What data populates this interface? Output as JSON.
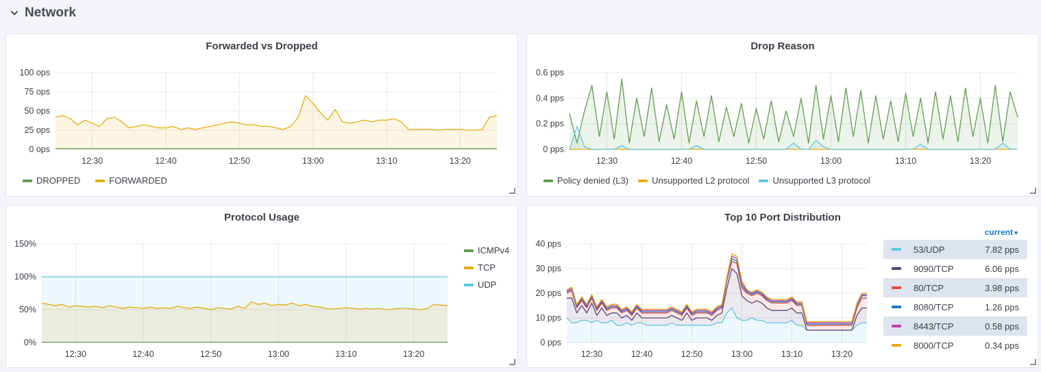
{
  "row": {
    "title": "Network"
  },
  "colors": {
    "green": "#629e51",
    "yellow": "#e5ac0e",
    "cyan": "#64c6e0",
    "purple": "#584477",
    "red": "#e24d42",
    "blue": "#1f78c1",
    "magenta": "#ba43a9",
    "grid": "#e6e8ec",
    "axis_text": "#3a3f47"
  },
  "panels": {
    "forwarded": {
      "title": "Forwarded vs Dropped",
      "legend": [
        {
          "label": "DROPPED",
          "color": "#629e51"
        },
        {
          "label": "FORWARDED",
          "color": "#e5ac0e"
        }
      ]
    },
    "drop_reason": {
      "title": "Drop Reason",
      "legend": [
        {
          "label": "Policy denied (L3)",
          "color": "#629e51"
        },
        {
          "label": "Unsupported L2 protocol",
          "color": "#e5ac0e"
        },
        {
          "label": "Unsupported L3 protocol",
          "color": "#64c6e0"
        }
      ]
    },
    "protocol": {
      "title": "Protocol Usage",
      "legend": [
        {
          "label": "ICMPv4",
          "color": "#629e51"
        },
        {
          "label": "TCP",
          "color": "#e5ac0e"
        },
        {
          "label": "UDP",
          "color": "#64c6e0"
        }
      ]
    },
    "ports": {
      "title": "Top 10 Port Distribution",
      "legend_header": "current",
      "legend": [
        {
          "label": "53/UDP",
          "value": "7.82 pps",
          "color": "#64c6e0"
        },
        {
          "label": "9090/TCP",
          "value": "6.06 pps",
          "color": "#584477"
        },
        {
          "label": "80/TCP",
          "value": "3.98 pps",
          "color": "#e24d42"
        },
        {
          "label": "8080/TCP",
          "value": "1.26 pps",
          "color": "#1f78c1"
        },
        {
          "label": "8443/TCP",
          "value": "0.58 pps",
          "color": "#ba43a9"
        },
        {
          "label": "8000/TCP",
          "value": "0.34 pps",
          "color": "#e5ac0e"
        }
      ]
    }
  },
  "chart_data": [
    {
      "type": "area",
      "title": "Forwarded vs Dropped",
      "x_ticks": [
        "12:30",
        "12:40",
        "12:50",
        "13:00",
        "13:10",
        "13:20"
      ],
      "y_ticks": [
        "0 ops",
        "25 ops",
        "50 ops",
        "75 ops",
        "100 ops"
      ],
      "x_range": [
        "12:25",
        "13:25"
      ],
      "ylim": [
        0,
        100
      ],
      "series": [
        {
          "name": "DROPPED",
          "values": [
            1,
            1,
            1,
            1,
            1,
            1,
            1,
            1,
            1,
            1,
            1,
            1,
            1,
            1,
            1,
            1,
            1,
            1,
            1,
            1,
            1,
            1,
            1,
            1,
            1,
            1,
            1,
            1,
            1,
            1,
            1,
            1,
            1,
            1,
            1,
            1,
            1,
            1,
            1,
            1,
            1,
            1,
            1,
            1,
            1,
            1,
            1,
            1,
            1,
            1,
            1,
            1,
            1,
            1,
            1,
            1,
            1,
            1,
            1,
            1,
            1
          ]
        },
        {
          "name": "FORWARDED",
          "values": [
            42,
            44,
            40,
            32,
            38,
            34,
            30,
            40,
            42,
            36,
            28,
            30,
            32,
            30,
            28,
            28,
            30,
            26,
            28,
            26,
            28,
            30,
            32,
            34,
            36,
            34,
            32,
            32,
            30,
            30,
            28,
            26,
            30,
            42,
            70,
            60,
            48,
            38,
            52,
            36,
            34,
            36,
            38,
            36,
            38,
            38,
            40,
            36,
            26,
            26,
            26,
            26,
            25,
            26,
            26,
            26,
            25,
            25,
            26,
            42,
            44
          ]
        }
      ]
    },
    {
      "type": "line",
      "title": "Drop Reason",
      "x_ticks": [
        "12:30",
        "12:40",
        "12:50",
        "13:00",
        "13:10",
        "13:20"
      ],
      "y_ticks": [
        "0 pps",
        "0.2 pps",
        "0.4 pps",
        "0.6 pps"
      ],
      "x_range": [
        "12:25",
        "13:25"
      ],
      "ylim": [
        0,
        0.6
      ],
      "series": [
        {
          "name": "Policy denied (L3)",
          "values": [
            0.28,
            0.05,
            0.3,
            0.5,
            0.1,
            0.45,
            0.08,
            0.55,
            0.05,
            0.4,
            0.1,
            0.48,
            0.06,
            0.35,
            0.08,
            0.45,
            0.05,
            0.38,
            0.1,
            0.42,
            0.06,
            0.33,
            0.1,
            0.36,
            0.05,
            0.32,
            0.08,
            0.38,
            0.06,
            0.3,
            0.1,
            0.4,
            0.05,
            0.5,
            0.08,
            0.42,
            0.06,
            0.48,
            0.1,
            0.46,
            0.05,
            0.42,
            0.08,
            0.38,
            0.06,
            0.44,
            0.1,
            0.4,
            0.05,
            0.45,
            0.08,
            0.42,
            0.06,
            0.48,
            0.1,
            0.4,
            0.05,
            0.5,
            0.06,
            0.45,
            0.25
          ]
        },
        {
          "name": "Unsupported L2 protocol",
          "values": [
            0,
            0,
            0,
            0,
            0,
            0,
            0,
            0,
            0,
            0,
            0,
            0,
            0,
            0,
            0,
            0,
            0,
            0,
            0,
            0,
            0,
            0,
            0,
            0,
            0,
            0,
            0,
            0,
            0,
            0,
            0,
            0,
            0,
            0,
            0,
            0,
            0,
            0,
            0,
            0,
            0,
            0,
            0,
            0,
            0,
            0,
            0,
            0,
            0,
            0,
            0,
            0,
            0,
            0,
            0,
            0,
            0,
            0,
            0,
            0,
            0
          ]
        },
        {
          "name": "Unsupported L3 protocol",
          "values": [
            0,
            0.18,
            0.02,
            0,
            0,
            0,
            0,
            0.03,
            0,
            0,
            0,
            0,
            0,
            0,
            0,
            0,
            0,
            0.03,
            0,
            0,
            0,
            0,
            0,
            0,
            0,
            0,
            0,
            0,
            0,
            0,
            0.05,
            0,
            0,
            0.07,
            0.02,
            0,
            0,
            0,
            0,
            0,
            0,
            0,
            0,
            0,
            0,
            0,
            0,
            0.04,
            0,
            0,
            0,
            0,
            0,
            0,
            0,
            0,
            0,
            0,
            0.05,
            0,
            0
          ]
        }
      ]
    },
    {
      "type": "area",
      "title": "Protocol Usage",
      "x_ticks": [
        "12:30",
        "12:40",
        "12:50",
        "13:00",
        "13:10",
        "13:20"
      ],
      "y_ticks": [
        "0%",
        "50%",
        "100%",
        "150%"
      ],
      "x_range": [
        "12:25",
        "13:25"
      ],
      "ylim": [
        0,
        150
      ],
      "series": [
        {
          "name": "ICMPv4",
          "values": [
            0.5,
            0.5,
            0.5,
            0.5,
            0.5,
            0.5,
            0.5,
            0.5,
            0.5,
            0.5,
            0.5,
            0.5,
            0.5,
            0.5,
            0.5,
            0.5,
            0.5,
            0.5,
            0.5,
            0.5,
            0.5,
            0.5,
            0.5,
            0.5,
            0.5,
            0.5,
            0.5,
            0.5,
            0.5,
            0.5,
            0.5,
            0.5,
            0.5,
            0.5,
            0.5,
            0.5,
            0.5,
            0.5,
            0.5,
            0.5,
            0.5,
            0.5,
            0.5,
            0.5,
            0.5,
            0.5,
            0.5,
            0.5,
            0.5,
            0.5,
            0.5,
            0.5,
            0.5,
            0.5,
            0.5,
            0.5,
            0.5,
            0.5,
            0.5,
            0.5,
            0.5
          ]
        },
        {
          "name": "TCP",
          "values": [
            60,
            58,
            56,
            58,
            54,
            56,
            55,
            54,
            55,
            53,
            56,
            54,
            52,
            54,
            53,
            52,
            54,
            52,
            53,
            52,
            55,
            53,
            52,
            54,
            52,
            50,
            53,
            52,
            51,
            55,
            52,
            62,
            58,
            60,
            56,
            58,
            57,
            60,
            56,
            58,
            55,
            54,
            52,
            51,
            52,
            53,
            52,
            51,
            52,
            51,
            52,
            50,
            51,
            52,
            52,
            51,
            50,
            52,
            58,
            57,
            56
          ]
        },
        {
          "name": "UDP",
          "values": [
            100,
            100,
            100,
            100,
            100,
            100,
            100,
            100,
            100,
            100,
            100,
            100,
            100,
            100,
            100,
            100,
            100,
            100,
            100,
            100,
            100,
            100,
            100,
            100,
            100,
            100,
            100,
            100,
            100,
            100,
            100,
            100,
            100,
            100,
            100,
            100,
            100,
            100,
            100,
            100,
            100,
            100,
            100,
            100,
            100,
            100,
            100,
            100,
            100,
            100,
            100,
            100,
            100,
            100,
            100,
            100,
            100,
            100,
            100,
            100,
            100
          ]
        }
      ]
    },
    {
      "type": "area",
      "title": "Top 10 Port Distribution",
      "stacked": true,
      "x_ticks": [
        "12:30",
        "12:40",
        "12:50",
        "13:00",
        "13:10",
        "13:20"
      ],
      "y_ticks": [
        "0 pps",
        "10 pps",
        "20 pps",
        "30 pps",
        "40 pps"
      ],
      "x_range": [
        "12:25",
        "13:25"
      ],
      "ylim": [
        0,
        40
      ],
      "series": [
        {
          "name": "53/UDP",
          "values": [
            10,
            8,
            8,
            9,
            9,
            8,
            9,
            8,
            8,
            9,
            7,
            7,
            8,
            7,
            8,
            8,
            7,
            7,
            7,
            7,
            7,
            8,
            7,
            7,
            7,
            7,
            7,
            7,
            7,
            7,
            8,
            8,
            12,
            14,
            10,
            9,
            9,
            10,
            9,
            9,
            8,
            8,
            8,
            8,
            8,
            9,
            7,
            7,
            5,
            5,
            5,
            5,
            5,
            5,
            5,
            5,
            5,
            5,
            7,
            8,
            8
          ]
        },
        {
          "name": "9090/TCP",
          "values": [
            8,
            10,
            4,
            6,
            3,
            8,
            2,
            6,
            3,
            3,
            5,
            3,
            3,
            2,
            4,
            2,
            3,
            3,
            3,
            3,
            3,
            3,
            3,
            2,
            5,
            2,
            3,
            3,
            3,
            2,
            3,
            4,
            10,
            16,
            18,
            10,
            8,
            6,
            8,
            7,
            6,
            5,
            5,
            5,
            5,
            5,
            5,
            5,
            0,
            0,
            0,
            0,
            0,
            0,
            0,
            0,
            0,
            0,
            4,
            6,
            6
          ]
        },
        {
          "name": "80/TCP",
          "values": [
            2,
            3,
            2,
            2,
            2,
            2,
            2,
            2,
            2,
            2,
            2,
            2,
            2,
            2,
            2,
            2,
            2,
            2,
            2,
            2,
            2,
            2,
            2,
            2,
            2,
            2,
            2,
            2,
            2,
            2,
            2,
            2,
            3,
            3,
            4,
            3,
            3,
            3,
            3,
            3,
            3,
            3,
            3,
            3,
            3,
            3,
            3,
            3,
            2,
            2,
            2,
            2,
            2,
            2,
            2,
            2,
            2,
            2,
            3,
            4,
            4
          ]
        },
        {
          "name": "8080/TCP",
          "values": [
            0.5,
            0.5,
            0.5,
            0.5,
            0.5,
            0.5,
            0.5,
            0.5,
            0.5,
            0.5,
            0.5,
            0.5,
            0.5,
            0.5,
            0.5,
            0.5,
            0.5,
            0.5,
            0.5,
            0.5,
            0.5,
            0.5,
            0.5,
            0.5,
            0.5,
            0.5,
            0.5,
            0.5,
            0.5,
            0.5,
            0.5,
            0.5,
            0.5,
            1,
            1,
            1,
            0.5,
            0.5,
            0.5,
            0.5,
            0.5,
            0.5,
            0.5,
            0.5,
            0.5,
            0.5,
            0.5,
            0.5,
            0.5,
            0.5,
            0.5,
            0.5,
            0.5,
            0.5,
            0.5,
            0.5,
            0.5,
            0.5,
            1,
            1,
            1
          ]
        },
        {
          "name": "8443/TCP",
          "values": [
            0.5,
            0.5,
            0.5,
            0.5,
            0.5,
            0.5,
            0.5,
            0.5,
            0.5,
            0.5,
            0.5,
            0.5,
            0.5,
            0.5,
            0.5,
            0.5,
            0.5,
            0.5,
            0.5,
            0.5,
            0.5,
            0.5,
            0.5,
            0.5,
            0.5,
            0.5,
            0.5,
            0.5,
            0.5,
            0.5,
            0.5,
            0.5,
            0.5,
            1,
            1,
            1,
            0.5,
            0.5,
            0.5,
            0.5,
            0.5,
            0.5,
            0.5,
            0.5,
            0.5,
            0.5,
            0.5,
            0.5,
            0.5,
            0.5,
            0.5,
            0.5,
            0.5,
            0.5,
            0.5,
            0.5,
            0.5,
            0.5,
            0.5,
            0.5,
            0.5
          ]
        },
        {
          "name": "8000/TCP",
          "values": [
            0.5,
            0.5,
            0.5,
            0.5,
            0.5,
            0.5,
            0.5,
            0.5,
            0.5,
            0.5,
            0.5,
            0.5,
            0.5,
            0.5,
            0.5,
            0.5,
            0.5,
            0.5,
            0.5,
            0.5,
            0.5,
            0.5,
            0.5,
            0.5,
            0.5,
            0.5,
            0.5,
            0.5,
            0.5,
            0.5,
            0.5,
            0.5,
            0.5,
            1,
            1,
            1,
            0.5,
            0.5,
            0.5,
            0.5,
            0.5,
            0.5,
            0.5,
            0.5,
            0.5,
            0.5,
            0.5,
            0.5,
            0.5,
            0.5,
            0.5,
            0.5,
            0.5,
            0.5,
            0.5,
            0.5,
            0.5,
            0.5,
            0.5,
            0.5,
            0.5
          ]
        }
      ]
    }
  ]
}
